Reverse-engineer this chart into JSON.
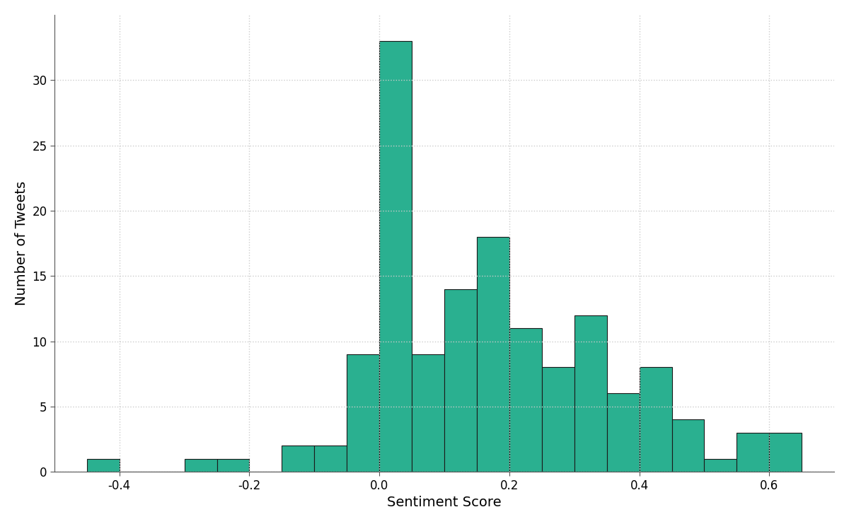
{
  "bin_centers": [
    -0.425,
    -0.375,
    -0.325,
    -0.275,
    -0.225,
    -0.175,
    -0.125,
    -0.075,
    -0.025,
    0.025,
    0.075,
    0.125,
    0.175,
    0.225,
    0.275,
    0.325,
    0.375,
    0.425,
    0.475,
    0.525,
    0.575,
    0.625
  ],
  "bar_heights": [
    1,
    0,
    0,
    1,
    1,
    0,
    2,
    2,
    9,
    33,
    9,
    14,
    18,
    11,
    8,
    12,
    6,
    8,
    4,
    1,
    3,
    3
  ],
  "bin_width": 0.05,
  "bar_color": "#2ab090",
  "bar_edgecolor": "#1a1a1a",
  "bar_linewidth": 0.8,
  "xlabel": "Sentiment Score",
  "ylabel": "Number of Tweets",
  "xlim": [
    -0.5,
    0.7
  ],
  "ylim": [
    0,
    35
  ],
  "yticks": [
    0,
    5,
    10,
    15,
    20,
    25,
    30
  ],
  "xticks": [
    -0.4,
    -0.2,
    0.0,
    0.2,
    0.4,
    0.6
  ],
  "grid_color": "#cccccc",
  "grid_linestyle": ":",
  "grid_linewidth": 1.0,
  "background_color": "#ffffff",
  "xlabel_fontsize": 14,
  "ylabel_fontsize": 14,
  "tick_fontsize": 12,
  "figure_width": 12.0,
  "figure_height": 7.41,
  "dpi": 100
}
